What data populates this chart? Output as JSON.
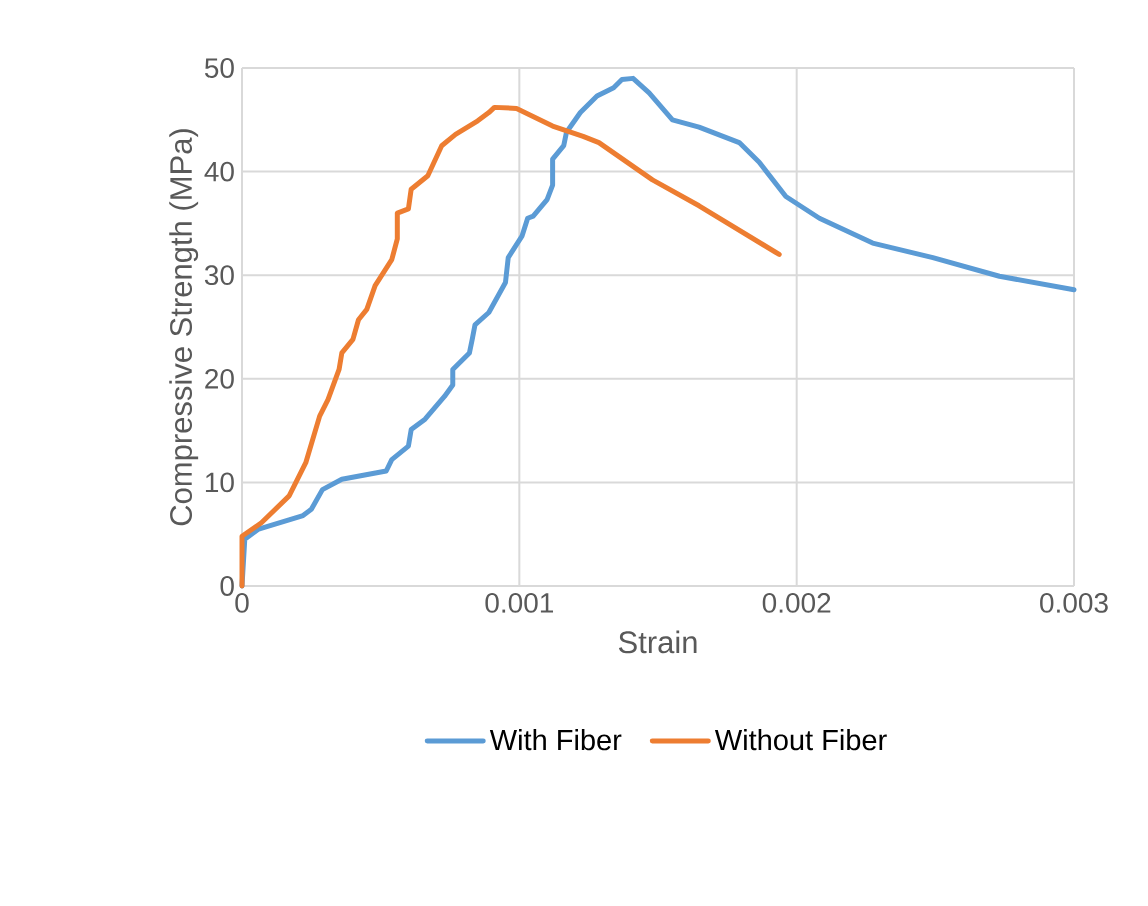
{
  "chart_data": {
    "type": "line",
    "xlabel": "Strain",
    "ylabel": "Compressive Strength (MPa)",
    "xlim": [
      0,
      0.003
    ],
    "ylim": [
      0,
      50
    ],
    "xticks": [
      0,
      0.001,
      0.002,
      0.003
    ],
    "yticks": [
      0,
      10,
      20,
      30,
      40,
      50
    ],
    "grid": true,
    "legend": "bottom",
    "marker": "none",
    "line_style": "solid",
    "series": [
      {
        "name": "With Fiber",
        "color": "#5b9bd5",
        "x": [
          0,
          1e-05,
          6e-05,
          0.00022,
          0.00025,
          0.00029,
          0.00036,
          0.00052,
          0.00054,
          0.0006,
          0.00061,
          0.00066,
          0.00073,
          0.00076,
          0.00076,
          0.00082,
          0.00083,
          0.00084,
          0.00089,
          0.00095,
          0.00096,
          0.00101,
          0.00103,
          0.00105,
          0.0011,
          0.00112,
          0.00112,
          0.00116,
          0.00117,
          0.00122,
          0.00128,
          0.00134,
          0.00137,
          0.00141,
          0.001468,
          0.001552,
          0.001648,
          0.001793,
          0.001865,
          0.001961,
          0.002082,
          0.002274,
          0.002491,
          0.002731,
          0.003
        ],
        "values": [
          0,
          4.5,
          5.5,
          6.8,
          7.4,
          9.3,
          10.3,
          11.1,
          12.2,
          13.5,
          15.1,
          16.1,
          18.3,
          19.4,
          20.9,
          22.5,
          23.8,
          25.2,
          26.4,
          29.3,
          31.7,
          33.8,
          35.5,
          35.7,
          37.3,
          38.7,
          41.2,
          42.5,
          43.8,
          45.7,
          47.3,
          48.1,
          48.9,
          49.0,
          47.6,
          45.0,
          44.3,
          42.8,
          40.9,
          37.6,
          35.5,
          33.1,
          31.7,
          29.9,
          28.6
        ]
      },
      {
        "name": "Without Fiber",
        "color": "#ed7d31",
        "x": [
          0,
          0,
          7e-05,
          0.00017,
          0.00023,
          0.00028,
          0.00031,
          0.00035,
          0.00036,
          0.0004,
          0.00042,
          0.00045,
          0.00048,
          0.00054,
          0.00056,
          0.00056,
          0.0006,
          0.00061,
          0.00067,
          0.00072,
          0.00077,
          0.00085,
          0.00089,
          0.00091,
          0.00099,
          0.00112,
          0.00123,
          0.001287,
          0.00148,
          0.001648,
          0.001937
        ],
        "values": [
          0,
          4.8,
          6.1,
          8.7,
          11.9,
          16.4,
          18.0,
          20.9,
          22.5,
          23.8,
          25.7,
          26.7,
          29.0,
          31.5,
          33.5,
          36.0,
          36.4,
          38.3,
          39.6,
          42.5,
          43.6,
          44.9,
          45.7,
          46.2,
          46.1,
          44.4,
          43.4,
          42.8,
          39.2,
          36.7,
          32.0
        ]
      }
    ]
  }
}
